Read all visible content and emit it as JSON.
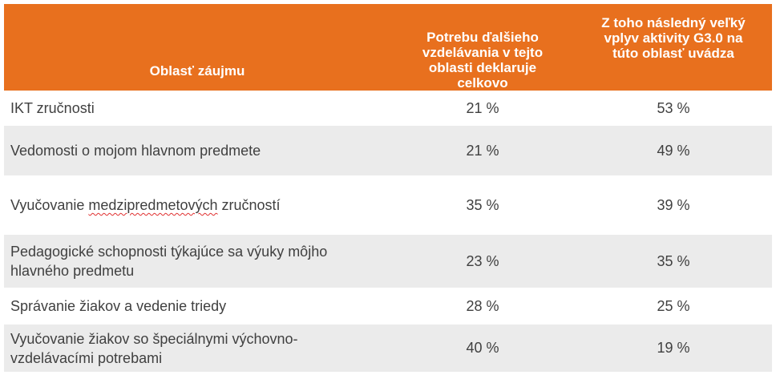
{
  "table": {
    "headers": {
      "area": "Oblasť záujmu",
      "declared": "Potrebu ďalšieho vzdelávania v tejto oblasti deklaruje celkovo",
      "impact": "Z toho následný veľký vplyv aktivity G3.0 na túto oblasť uvádza"
    },
    "header_color": "#e8701e",
    "rows": [
      {
        "area_a": "IKT zručnosti",
        "area_b": "",
        "declared": "21 %",
        "impact": "53 %"
      },
      {
        "area_a": "Vedomosti o mojom hlavnom predmete",
        "area_b": "",
        "declared": "21 %",
        "impact": "49 %"
      },
      {
        "area_a": "Vyučovanie ",
        "area_b": "medzipredmetových",
        "area_c": " zručností",
        "declared": "35 %",
        "impact": "39 %"
      },
      {
        "area_a": "Pedagogické schopnosti týkajúce sa výuky môjho hlavného predmetu",
        "area_b": "",
        "declared": "23 %",
        "impact": "35 %"
      },
      {
        "area_a": "Správanie žiakov a vedenie triedy",
        "area_b": "",
        "declared": "28 %",
        "impact": "25 %"
      },
      {
        "area_a": "Vyučovanie žiakov so špeciálnymi výchovno-vzdelávacími potrebami",
        "area_b": "",
        "declared": "40 %",
        "impact": "19 %"
      }
    ]
  }
}
